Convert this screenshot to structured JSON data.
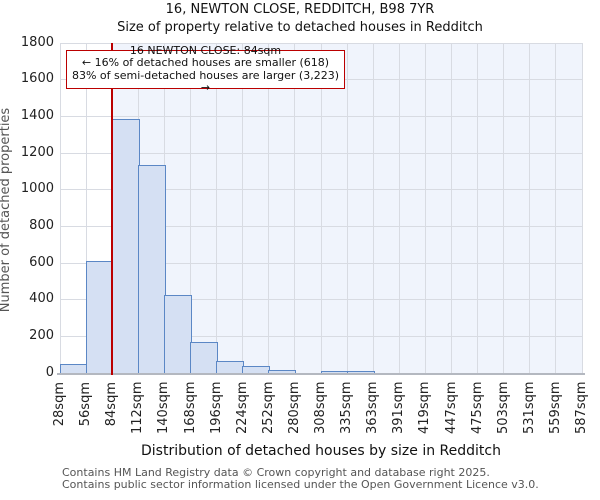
{
  "title": "16, NEWTON CLOSE, REDDITCH, B98 7YR",
  "subtitle": "Size of property relative to detached houses in Redditch",
  "annotation": {
    "line1": "16 NEWTON CLOSE: 84sqm",
    "line2": "← 16% of detached houses are smaller (618)",
    "line3": "83% of semi-detached houses are larger (3,223) →"
  },
  "chart_data": {
    "type": "bar",
    "title": "16, NEWTON CLOSE, REDDITCH, B98 7YR — Size of property relative to detached houses in Redditch",
    "categories": [
      "28sqm",
      "56sqm",
      "84sqm",
      "112sqm",
      "140sqm",
      "168sqm",
      "196sqm",
      "224sqm",
      "252sqm",
      "280sqm",
      "308sqm",
      "335sqm",
      "363sqm",
      "391sqm",
      "419sqm",
      "447sqm",
      "475sqm",
      "503sqm",
      "531sqm",
      "559sqm",
      "587sqm"
    ],
    "values": [
      45,
      605,
      1380,
      1130,
      420,
      165,
      60,
      35,
      10,
      0,
      5,
      5,
      0,
      0,
      0,
      0,
      0,
      0,
      0,
      0
    ],
    "xlabel": "Distribution of detached houses by size in Redditch",
    "ylabel": "Number of detached properties",
    "ylim": [
      0,
      1800
    ],
    "ytick_step": 200,
    "grid": "on",
    "marker_label": "84sqm",
    "marker_index": 2,
    "colors": {
      "bar_fill": "#d5e0f3",
      "bar_border": "#5b87c5",
      "marker_line": "#bb0000",
      "shade_bg": "#f0f4fc",
      "grid": "#d8dbe2",
      "axis_line": "#b4b8c0"
    }
  },
  "footer": {
    "line1": "Contains HM Land Registry data © Crown copyright and database right 2025.",
    "line2": "Contains public sector information licensed under the Open Government Licence v3.0."
  }
}
